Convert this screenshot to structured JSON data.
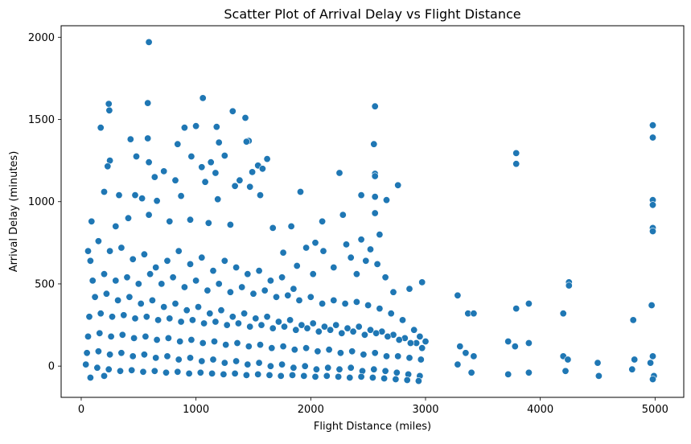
{
  "chart_data": {
    "type": "scatter",
    "title": "Scatter Plot of Arrival Delay vs Flight Distance",
    "xlabel": "Flight Distance (miles)",
    "ylabel": "Arrival Delay (minutes)",
    "xlim": [
      -175,
      5250
    ],
    "ylim": [
      -190,
      2070
    ],
    "xticks": [
      0,
      1000,
      2000,
      3000,
      4000,
      5000
    ],
    "yticks": [
      0,
      500,
      1000,
      1500,
      2000
    ],
    "grid": false,
    "series": [
      {
        "color": "#1f77b4",
        "points": [
          [
            590,
            1970
          ],
          [
            1060,
            1630
          ],
          [
            580,
            1600
          ],
          [
            240,
            1595
          ],
          [
            245,
            1555
          ],
          [
            1320,
            1550
          ],
          [
            170,
            1450
          ],
          [
            900,
            1450
          ],
          [
            1000,
            1460
          ],
          [
            1180,
            1455
          ],
          [
            1430,
            1510
          ],
          [
            2560,
            1580
          ],
          [
            2550,
            1350
          ],
          [
            3790,
            1295
          ],
          [
            3790,
            1230
          ],
          [
            4980,
            1465
          ],
          [
            4980,
            1390
          ],
          [
            580,
            1385
          ],
          [
            430,
            1380
          ],
          [
            1200,
            1360
          ],
          [
            1460,
            1370
          ],
          [
            1440,
            1365
          ],
          [
            840,
            1350
          ],
          [
            480,
            1275
          ],
          [
            250,
            1250
          ],
          [
            230,
            1215
          ],
          [
            1130,
            1240
          ],
          [
            1620,
            1260
          ],
          [
            1540,
            1220
          ],
          [
            590,
            1240
          ],
          [
            960,
            1275
          ],
          [
            1050,
            1210
          ],
          [
            1250,
            1280
          ],
          [
            1580,
            1200
          ],
          [
            1490,
            1180
          ],
          [
            720,
            1185
          ],
          [
            1170,
            1175
          ],
          [
            2250,
            1175
          ],
          [
            2560,
            1170
          ],
          [
            2560,
            1155
          ],
          [
            2760,
            1100
          ],
          [
            640,
            1150
          ],
          [
            820,
            1130
          ],
          [
            1080,
            1120
          ],
          [
            1380,
            1130
          ],
          [
            1340,
            1095
          ],
          [
            1470,
            1090
          ],
          [
            200,
            1060
          ],
          [
            330,
            1040
          ],
          [
            470,
            1040
          ],
          [
            530,
            1020
          ],
          [
            660,
            1005
          ],
          [
            870,
            1035
          ],
          [
            1190,
            1015
          ],
          [
            1560,
            1040
          ],
          [
            1910,
            1060
          ],
          [
            2440,
            1040
          ],
          [
            2560,
            1030
          ],
          [
            2660,
            1010
          ],
          [
            4980,
            1010
          ],
          [
            4980,
            980
          ],
          [
            4980,
            840
          ],
          [
            4980,
            820
          ],
          [
            90,
            880
          ],
          [
            300,
            850
          ],
          [
            410,
            900
          ],
          [
            590,
            920
          ],
          [
            770,
            880
          ],
          [
            950,
            890
          ],
          [
            1110,
            870
          ],
          [
            1300,
            860
          ],
          [
            1670,
            840
          ],
          [
            1830,
            850
          ],
          [
            2100,
            880
          ],
          [
            2280,
            920
          ],
          [
            2560,
            930
          ],
          [
            2600,
            800
          ],
          [
            2440,
            770
          ],
          [
            2040,
            750
          ],
          [
            2310,
            740
          ],
          [
            1760,
            690
          ],
          [
            1960,
            720
          ],
          [
            2110,
            700
          ],
          [
            2520,
            710
          ],
          [
            2350,
            660
          ],
          [
            2480,
            640
          ],
          [
            2580,
            620
          ],
          [
            1880,
            610
          ],
          [
            2200,
            600
          ],
          [
            2020,
            560
          ],
          [
            2400,
            560
          ],
          [
            2650,
            540
          ],
          [
            2720,
            450
          ],
          [
            2860,
            470
          ],
          [
            2970,
            510
          ],
          [
            3280,
            430
          ],
          [
            3370,
            320
          ],
          [
            3420,
            320
          ],
          [
            3790,
            350
          ],
          [
            3900,
            380
          ],
          [
            4200,
            320
          ],
          [
            4250,
            510
          ],
          [
            4250,
            490
          ],
          [
            4970,
            370
          ],
          [
            4810,
            280
          ],
          [
            60,
            700
          ],
          [
            80,
            640
          ],
          [
            150,
            760
          ],
          [
            250,
            700
          ],
          [
            350,
            720
          ],
          [
            450,
            650
          ],
          [
            550,
            680
          ],
          [
            650,
            600
          ],
          [
            750,
            640
          ],
          [
            850,
            700
          ],
          [
            950,
            620
          ],
          [
            1050,
            660
          ],
          [
            1150,
            580
          ],
          [
            1250,
            640
          ],
          [
            1350,
            600
          ],
          [
            1450,
            560
          ],
          [
            1550,
            580
          ],
          [
            1650,
            520
          ],
          [
            1750,
            540
          ],
          [
            1850,
            470
          ],
          [
            100,
            520
          ],
          [
            200,
            560
          ],
          [
            300,
            520
          ],
          [
            400,
            540
          ],
          [
            500,
            500
          ],
          [
            600,
            560
          ],
          [
            700,
            500
          ],
          [
            800,
            540
          ],
          [
            900,
            480
          ],
          [
            1000,
            520
          ],
          [
            1100,
            460
          ],
          [
            1200,
            500
          ],
          [
            1300,
            450
          ],
          [
            1400,
            480
          ],
          [
            1500,
            440
          ],
          [
            1600,
            460
          ],
          [
            1700,
            420
          ],
          [
            1800,
            430
          ],
          [
            1900,
            400
          ],
          [
            2000,
            420
          ],
          [
            2100,
            380
          ],
          [
            2200,
            400
          ],
          [
            2300,
            380
          ],
          [
            2400,
            390
          ],
          [
            2500,
            370
          ],
          [
            2600,
            350
          ],
          [
            2700,
            320
          ],
          [
            2800,
            280
          ],
          [
            2900,
            220
          ],
          [
            2950,
            180
          ],
          [
            3000,
            150
          ],
          [
            120,
            420
          ],
          [
            220,
            440
          ],
          [
            320,
            400
          ],
          [
            420,
            420
          ],
          [
            520,
            380
          ],
          [
            620,
            400
          ],
          [
            720,
            360
          ],
          [
            820,
            380
          ],
          [
            920,
            340
          ],
          [
            1020,
            360
          ],
          [
            1120,
            320
          ],
          [
            1220,
            340
          ],
          [
            1320,
            300
          ],
          [
            1420,
            320
          ],
          [
            1520,
            290
          ],
          [
            1620,
            300
          ],
          [
            1720,
            270
          ],
          [
            1820,
            280
          ],
          [
            1920,
            250
          ],
          [
            2020,
            260
          ],
          [
            2120,
            240
          ],
          [
            2220,
            250
          ],
          [
            2320,
            230
          ],
          [
            2420,
            240
          ],
          [
            2520,
            220
          ],
          [
            2620,
            210
          ],
          [
            2720,
            190
          ],
          [
            2820,
            170
          ],
          [
            2920,
            140
          ],
          [
            70,
            300
          ],
          [
            170,
            320
          ],
          [
            270,
            300
          ],
          [
            370,
            310
          ],
          [
            470,
            290
          ],
          [
            570,
            300
          ],
          [
            670,
            280
          ],
          [
            770,
            290
          ],
          [
            870,
            270
          ],
          [
            970,
            280
          ],
          [
            1070,
            260
          ],
          [
            1170,
            270
          ],
          [
            1270,
            250
          ],
          [
            1370,
            260
          ],
          [
            1470,
            240
          ],
          [
            1570,
            250
          ],
          [
            1670,
            230
          ],
          [
            1770,
            240
          ],
          [
            1870,
            220
          ],
          [
            1970,
            230
          ],
          [
            2070,
            210
          ],
          [
            2170,
            220
          ],
          [
            2270,
            200
          ],
          [
            2370,
            210
          ],
          [
            2470,
            190
          ],
          [
            2570,
            200
          ],
          [
            2670,
            180
          ],
          [
            2770,
            160
          ],
          [
            2870,
            140
          ],
          [
            2970,
            110
          ],
          [
            3300,
            120
          ],
          [
            3350,
            80
          ],
          [
            3420,
            60
          ],
          [
            3720,
            150
          ],
          [
            3780,
            120
          ],
          [
            3900,
            140
          ],
          [
            4200,
            60
          ],
          [
            4240,
            40
          ],
          [
            4500,
            20
          ],
          [
            4820,
            40
          ],
          [
            4980,
            60
          ],
          [
            4960,
            20
          ],
          [
            4990,
            -60
          ],
          [
            60,
            180
          ],
          [
            160,
            200
          ],
          [
            260,
            180
          ],
          [
            360,
            190
          ],
          [
            460,
            170
          ],
          [
            560,
            180
          ],
          [
            660,
            160
          ],
          [
            760,
            170
          ],
          [
            860,
            150
          ],
          [
            960,
            160
          ],
          [
            1060,
            140
          ],
          [
            1160,
            150
          ],
          [
            1260,
            130
          ],
          [
            1360,
            140
          ],
          [
            1460,
            120
          ],
          [
            1560,
            130
          ],
          [
            1660,
            110
          ],
          [
            1760,
            120
          ],
          [
            1860,
            100
          ],
          [
            1960,
            110
          ],
          [
            2060,
            90
          ],
          [
            2160,
            100
          ],
          [
            2260,
            80
          ],
          [
            2360,
            90
          ],
          [
            2460,
            70
          ],
          [
            2560,
            80
          ],
          [
            2660,
            60
          ],
          [
            2760,
            60
          ],
          [
            2860,
            50
          ],
          [
            2960,
            40
          ],
          [
            50,
            80
          ],
          [
            150,
            90
          ],
          [
            250,
            70
          ],
          [
            350,
            80
          ],
          [
            450,
            60
          ],
          [
            550,
            70
          ],
          [
            650,
            50
          ],
          [
            750,
            60
          ],
          [
            850,
            40
          ],
          [
            950,
            50
          ],
          [
            1050,
            30
          ],
          [
            1150,
            40
          ],
          [
            1250,
            20
          ],
          [
            1350,
            30
          ],
          [
            1450,
            10
          ],
          [
            1550,
            20
          ],
          [
            1650,
            0
          ],
          [
            1750,
            10
          ],
          [
            1850,
            -10
          ],
          [
            1950,
            0
          ],
          [
            2050,
            -20
          ],
          [
            2150,
            -10
          ],
          [
            2250,
            -20
          ],
          [
            2350,
            -10
          ],
          [
            2450,
            -30
          ],
          [
            2550,
            -20
          ],
          [
            2650,
            -30
          ],
          [
            2750,
            -40
          ],
          [
            2850,
            -50
          ],
          [
            2950,
            -60
          ],
          [
            40,
            10
          ],
          [
            140,
            -10
          ],
          [
            240,
            -20
          ],
          [
            340,
            -30
          ],
          [
            440,
            -25
          ],
          [
            540,
            -35
          ],
          [
            640,
            -30
          ],
          [
            740,
            -40
          ],
          [
            840,
            -35
          ],
          [
            940,
            -45
          ],
          [
            1040,
            -40
          ],
          [
            1140,
            -45
          ],
          [
            1240,
            -50
          ],
          [
            1340,
            -45
          ],
          [
            1440,
            -55
          ],
          [
            1540,
            -50
          ],
          [
            1640,
            -55
          ],
          [
            1740,
            -60
          ],
          [
            1840,
            -55
          ],
          [
            1940,
            -60
          ],
          [
            2040,
            -65
          ],
          [
            2140,
            -60
          ],
          [
            2240,
            -65
          ],
          [
            2340,
            -70
          ],
          [
            2440,
            -65
          ],
          [
            2540,
            -70
          ],
          [
            2640,
            -75
          ],
          [
            2740,
            -80
          ],
          [
            2840,
            -85
          ],
          [
            2940,
            -90
          ],
          [
            80,
            -70
          ],
          [
            200,
            -60
          ],
          [
            3280,
            10
          ],
          [
            3400,
            -40
          ],
          [
            3720,
            -50
          ],
          [
            3900,
            -40
          ],
          [
            4220,
            -30
          ],
          [
            4510,
            -60
          ],
          [
            4800,
            -20
          ],
          [
            4980,
            -80
          ]
        ]
      }
    ]
  }
}
